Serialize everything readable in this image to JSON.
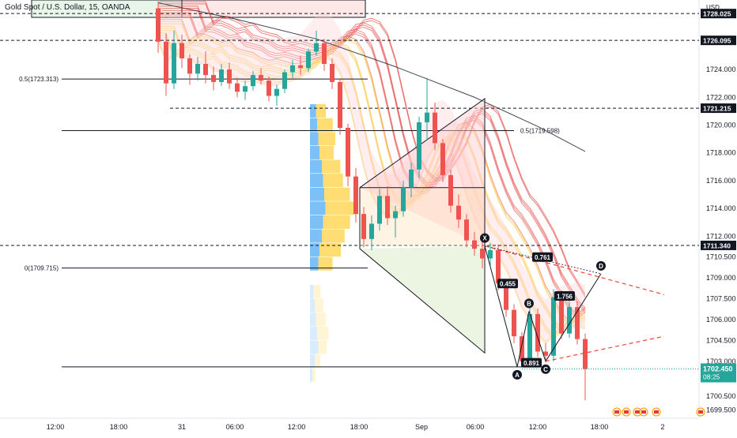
{
  "header": {
    "title": "Gold Spot / U.S. Dollar, 15, OANDA",
    "currency": "USD"
  },
  "colors": {
    "up": "#26a69a",
    "down": "#ef5350",
    "ribbon_top": "#e53935",
    "ribbon_bottom": "#ffb300",
    "volume_blue": "#64b5f6",
    "volume_yellow": "#ffd54f",
    "pattern_red": "#f44336",
    "pattern_green": "#8bc34a",
    "price_badge": "#26a69a"
  },
  "chart_data": {
    "type": "candlestick",
    "symbol": "XAUUSD",
    "timeframe": "15",
    "ylim": [
      1698.9,
      1729.0
    ],
    "x_ticks": [
      "12:00",
      "18:00",
      "31",
      "06:00",
      "12:00",
      "18:00",
      "Sep",
      "06:00",
      "12:00",
      "18:00",
      "2"
    ],
    "y_ticks": [
      "1699.500",
      "1700.500",
      "1703.000",
      "1704.500",
      "1706.000",
      "1707.500",
      "1709.000",
      "1710.500",
      "1712.000",
      "1714.000",
      "1716.000",
      "1718.000",
      "1720.000",
      "1722.000",
      "1724.000"
    ],
    "last_price": "1702.450",
    "countdown": "08:25",
    "marked_levels": [
      {
        "price": 1728.025,
        "label": "1728.025"
      },
      {
        "price": 1726.095,
        "label": "1726.095"
      },
      {
        "price": 1721.215,
        "label": "1721.215"
      },
      {
        "price": 1711.34,
        "label": "1711.340"
      }
    ],
    "fib_levels": [
      {
        "price": 1723.313,
        "label": "0.5(1723.313)"
      },
      {
        "price": 1719.598,
        "label": "0.5(1719.598)"
      },
      {
        "price": 1709.715,
        "label": "0(1709.715)"
      }
    ],
    "harmonic_points": [
      {
        "label": "X",
        "time": "Sep 06:30",
        "price": 1711.3
      },
      {
        "label": "A",
        "time": "Sep 10:00",
        "price": 1702.6
      },
      {
        "label": "B",
        "time": "Sep 11:00",
        "price": 1706.6
      },
      {
        "label": "C",
        "time": "Sep 12:00",
        "price": 1703.0
      },
      {
        "label": "D",
        "time": "Sep 18:00",
        "price": 1709.3
      }
    ],
    "harmonic_ratios": [
      "0.761",
      "0.455",
      "0.891",
      "1.756"
    ],
    "series": [
      {
        "name": "price",
        "ohlc": [
          [
            1728.4,
            1728.9,
            1725.2,
            1726.0
          ],
          [
            1726.0,
            1726.6,
            1722.1,
            1723.0
          ],
          [
            1723.0,
            1726.8,
            1722.6,
            1725.9
          ],
          [
            1725.9,
            1726.5,
            1724.1,
            1724.8
          ],
          [
            1724.8,
            1725.1,
            1722.9,
            1723.7
          ],
          [
            1723.7,
            1724.9,
            1723.2,
            1724.4
          ],
          [
            1724.4,
            1725.3,
            1723.0,
            1723.6
          ],
          [
            1723.6,
            1724.2,
            1722.5,
            1723.1
          ],
          [
            1723.1,
            1724.4,
            1722.8,
            1724.0
          ],
          [
            1724.0,
            1724.5,
            1722.6,
            1723.0
          ],
          [
            1723.0,
            1723.4,
            1722.0,
            1722.4
          ],
          [
            1722.4,
            1723.2,
            1721.8,
            1722.8
          ],
          [
            1722.8,
            1723.9,
            1722.5,
            1723.6
          ],
          [
            1723.6,
            1724.1,
            1722.9,
            1723.2
          ],
          [
            1723.2,
            1723.5,
            1721.7,
            1722.1
          ],
          [
            1722.1,
            1722.9,
            1721.4,
            1722.6
          ],
          [
            1722.6,
            1724.0,
            1722.3,
            1723.8
          ],
          [
            1723.8,
            1724.7,
            1723.4,
            1724.3
          ],
          [
            1724.3,
            1725.0,
            1723.6,
            1724.1
          ],
          [
            1724.1,
            1725.5,
            1723.8,
            1725.3
          ],
          [
            1725.3,
            1726.8,
            1725.0,
            1725.9
          ],
          [
            1725.9,
            1726.2,
            1723.9,
            1724.4
          ],
          [
            1724.4,
            1724.8,
            1722.6,
            1723.1
          ],
          [
            1723.1,
            1723.3,
            1719.3,
            1719.8
          ],
          [
            1719.8,
            1720.1,
            1715.6,
            1716.3
          ],
          [
            1716.3,
            1716.9,
            1713.0,
            1713.6
          ],
          [
            1713.6,
            1714.1,
            1711.2,
            1711.8
          ],
          [
            1711.8,
            1713.5,
            1711.0,
            1712.9
          ],
          [
            1712.9,
            1715.4,
            1712.4,
            1714.9
          ],
          [
            1714.9,
            1715.6,
            1712.8,
            1713.3
          ],
          [
            1713.3,
            1714.2,
            1711.9,
            1713.8
          ],
          [
            1713.8,
            1716.0,
            1713.4,
            1715.5
          ],
          [
            1715.5,
            1717.3,
            1714.8,
            1716.8
          ],
          [
            1716.8,
            1720.6,
            1716.2,
            1720.2
          ],
          [
            1720.2,
            1723.4,
            1718.9,
            1720.9
          ],
          [
            1720.9,
            1721.6,
            1718.2,
            1718.7
          ],
          [
            1718.7,
            1719.0,
            1715.9,
            1716.4
          ],
          [
            1716.4,
            1716.8,
            1713.7,
            1714.2
          ],
          [
            1714.2,
            1715.0,
            1712.6,
            1713.2
          ],
          [
            1713.2,
            1713.6,
            1711.2,
            1711.7
          ],
          [
            1711.7,
            1712.3,
            1710.6,
            1711.1
          ],
          [
            1711.1,
            1711.6,
            1709.7,
            1710.4
          ],
          [
            1710.4,
            1711.5,
            1709.9,
            1711.0
          ],
          [
            1711.0,
            1711.4,
            1708.1,
            1708.6
          ],
          [
            1708.6,
            1708.9,
            1706.2,
            1706.7
          ],
          [
            1706.7,
            1707.1,
            1704.3,
            1704.8
          ],
          [
            1704.8,
            1705.1,
            1702.6,
            1703.0
          ],
          [
            1703.0,
            1706.9,
            1702.7,
            1706.4
          ],
          [
            1706.4,
            1706.8,
            1703.3,
            1703.7
          ],
          [
            1703.7,
            1704.3,
            1702.9,
            1703.4
          ],
          [
            1703.4,
            1708.2,
            1703.0,
            1707.6
          ],
          [
            1707.6,
            1708.1,
            1704.6,
            1705.0
          ],
          [
            1705.0,
            1707.4,
            1704.7,
            1706.9
          ],
          [
            1706.9,
            1707.3,
            1704.2,
            1704.6
          ],
          [
            1704.6,
            1705.0,
            1700.2,
            1702.45
          ]
        ]
      },
      {
        "name": "slow_ma",
        "points": [
          [
            0,
            1728.8
          ],
          [
            10,
            1727.6
          ],
          [
            20,
            1726.2
          ],
          [
            30,
            1724.2
          ],
          [
            40,
            1722.0
          ],
          [
            48,
            1719.9
          ],
          [
            54,
            1718.1
          ]
        ]
      }
    ],
    "volume_profile": {
      "rows": [
        {
          "price": 1721.0,
          "blue": 0.25,
          "yellow": 0.35
        },
        {
          "price": 1720.0,
          "blue": 0.3,
          "yellow": 0.55
        },
        {
          "price": 1719.0,
          "blue": 0.35,
          "yellow": 0.6
        },
        {
          "price": 1718.0,
          "blue": 0.4,
          "yellow": 0.5
        },
        {
          "price": 1717.0,
          "blue": 0.5,
          "yellow": 0.65
        },
        {
          "price": 1716.0,
          "blue": 0.55,
          "yellow": 0.7
        },
        {
          "price": 1715.0,
          "blue": 0.6,
          "yellow": 0.9
        },
        {
          "price": 1714.0,
          "blue": 0.65,
          "yellow": 1.0
        },
        {
          "price": 1713.0,
          "blue": 0.55,
          "yellow": 0.95
        },
        {
          "price": 1712.0,
          "blue": 0.5,
          "yellow": 0.8
        },
        {
          "price": 1711.0,
          "blue": 0.4,
          "yellow": 0.75
        },
        {
          "price": 1710.0,
          "blue": 0.35,
          "yellow": 0.5
        },
        {
          "price": 1708.0,
          "blue": 0.15,
          "yellow": 0.25
        },
        {
          "price": 1707.0,
          "blue": 0.2,
          "yellow": 0.3
        },
        {
          "price": 1706.0,
          "blue": 0.25,
          "yellow": 0.35
        },
        {
          "price": 1705.0,
          "blue": 0.3,
          "yellow": 0.4
        },
        {
          "price": 1704.0,
          "blue": 0.35,
          "yellow": 0.3
        },
        {
          "price": 1703.0,
          "blue": 0.2,
          "yellow": 0.2
        },
        {
          "price": 1702.0,
          "blue": 0.1,
          "yellow": 0.1
        }
      ]
    }
  }
}
